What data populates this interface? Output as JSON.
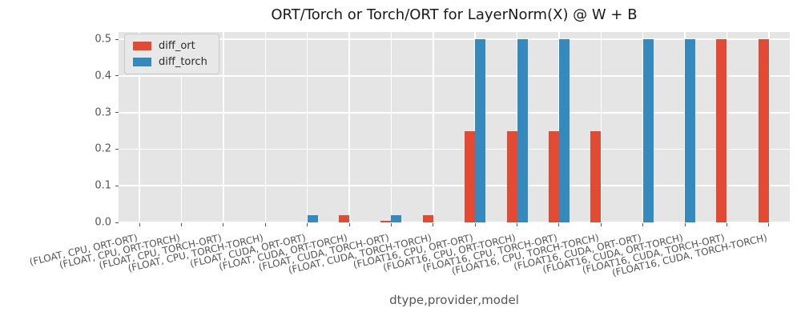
{
  "chart_data": {
    "type": "bar",
    "title": "ORT/Torch or Torch/ORT for LayerNorm(X) @ W + B",
    "xlabel": "dtype,provider,model",
    "ylabel": "",
    "ylim": [
      0,
      0.52
    ],
    "grid": true,
    "legend_position": "upper-left",
    "ytick_labels": [
      "0.0",
      "0.1",
      "0.2",
      "0.3",
      "0.4",
      "0.5"
    ],
    "yticks": [
      0.0,
      0.1,
      0.2,
      0.3,
      0.4,
      0.5
    ],
    "categories": [
      "(FLOAT, CPU, ORT-ORT)",
      "(FLOAT, CPU, ORT-TORCH)",
      "(FLOAT, CPU, TORCH-ORT)",
      "(FLOAT, CPU, TORCH-TORCH)",
      "(FLOAT, CUDA, ORT-ORT)",
      "(FLOAT, CUDA, ORT-TORCH)",
      "(FLOAT, CUDA, TORCH-ORT)",
      "(FLOAT, CUDA, TORCH-TORCH)",
      "(FLOAT16, CPU, ORT-ORT)",
      "(FLOAT16, CPU, ORT-TORCH)",
      "(FLOAT16, CPU, TORCH-ORT)",
      "(FLOAT16, CPU, TORCH-TORCH)",
      "(FLOAT16, CUDA, ORT-ORT)",
      "(FLOAT16, CUDA, ORT-TORCH)",
      "(FLOAT16, CUDA, TORCH-ORT)",
      "(FLOAT16, CUDA, TORCH-TORCH)"
    ],
    "series": [
      {
        "name": "diff_ort",
        "color": "#E24A33",
        "values": [
          0,
          0,
          0,
          0,
          0,
          0.02,
          0.005,
          0.02,
          0.25,
          0.25,
          0.25,
          0.25,
          0,
          0,
          0.5,
          0.5
        ]
      },
      {
        "name": "diff_torch",
        "color": "#348ABD",
        "values": [
          0,
          0,
          0,
          0,
          0.02,
          0,
          0.02,
          0,
          0.5,
          0.5,
          0.5,
          0,
          0.5,
          0.5,
          0,
          0
        ]
      }
    ]
  },
  "style_colors": {
    "axes_background": "#e5e5e5",
    "grid": "#ffffff",
    "tick_text": "#555555",
    "title_text": "#1a1a1a"
  }
}
